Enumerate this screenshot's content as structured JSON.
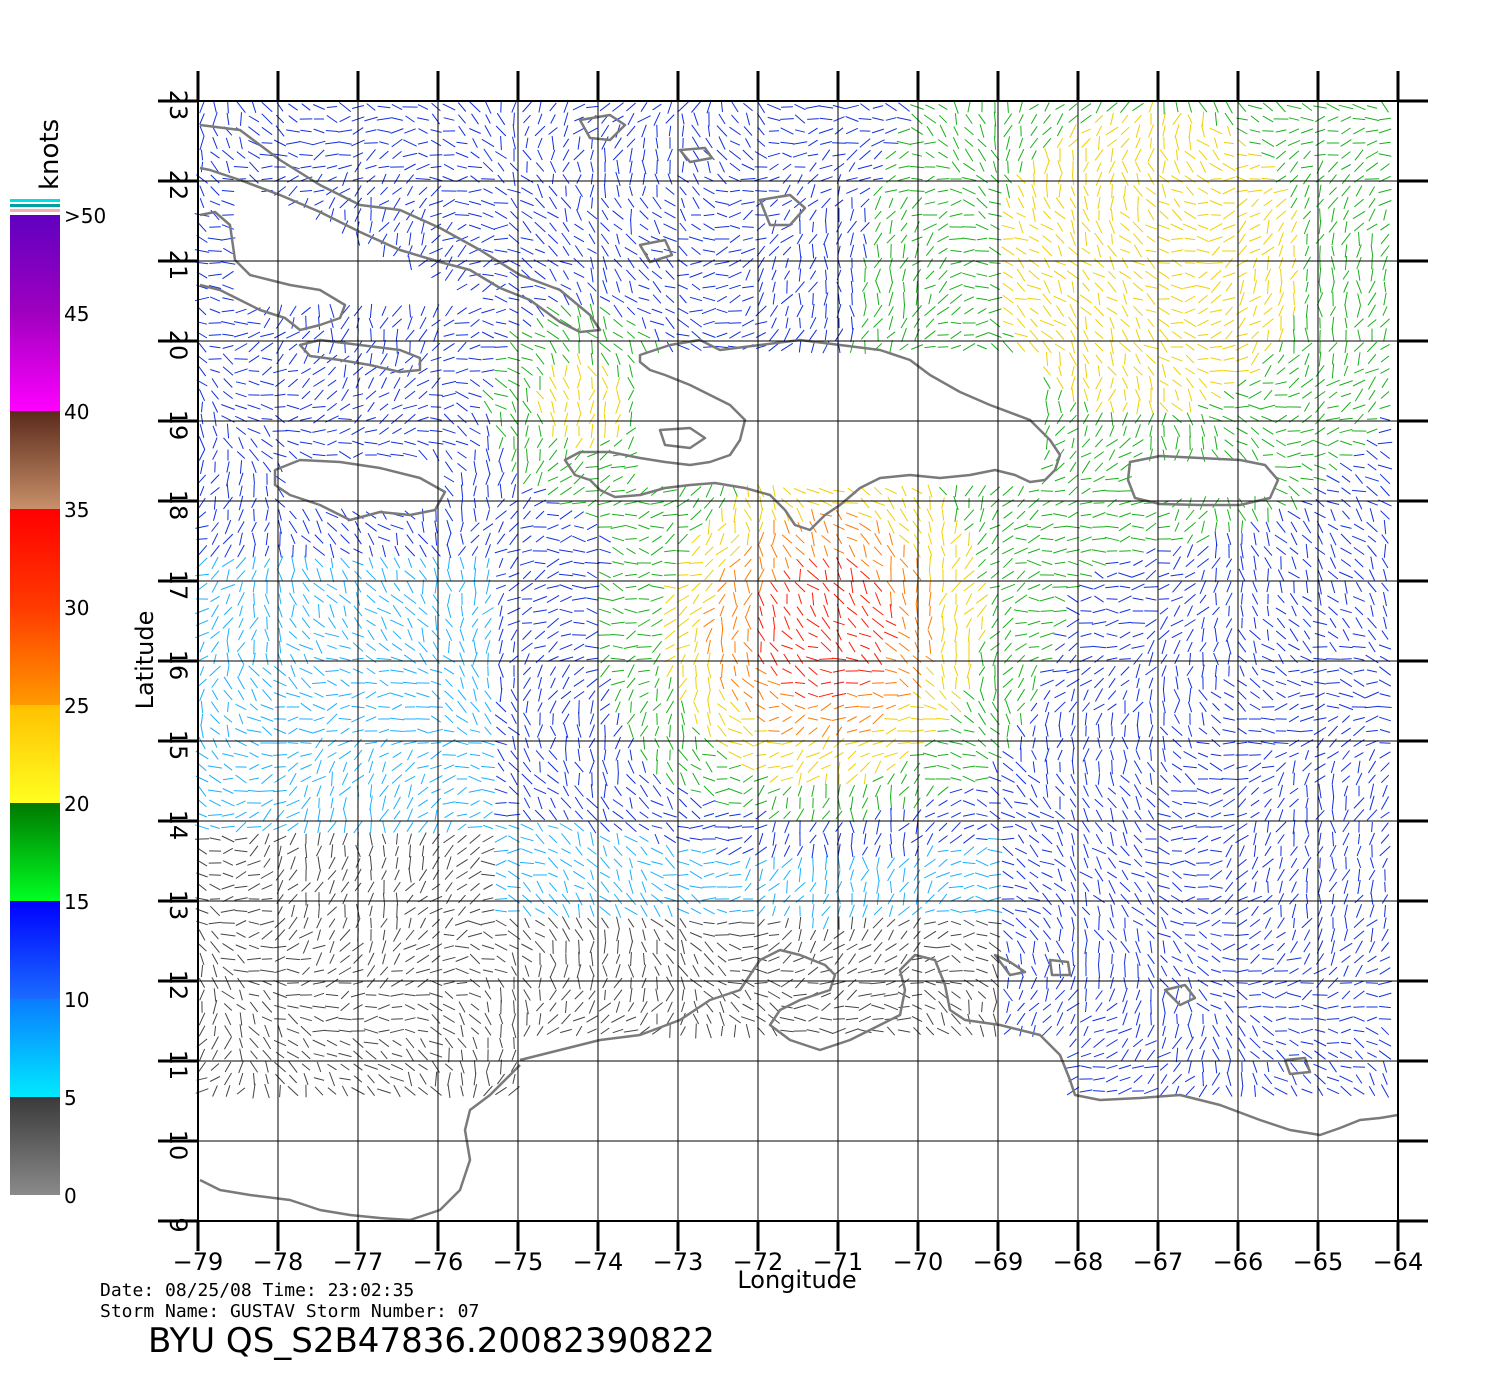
{
  "map": {
    "xlabel": "Longitude",
    "ylabel": "Latitude",
    "lon_ticks": [
      "−79",
      "−78",
      "−77",
      "−76",
      "−75",
      "−74",
      "−73",
      "−72",
      "−71",
      "−70",
      "−69",
      "−68",
      "−67",
      "−66",
      "−65",
      "−64"
    ],
    "lat_ticks": [
      "9",
      "10",
      "11",
      "12",
      "13",
      "14",
      "15",
      "16",
      "17",
      "18",
      "19",
      "20",
      "21",
      "22",
      "23"
    ],
    "lon_range": [
      -79,
      -64
    ],
    "lat_range": [
      9,
      23
    ],
    "grid": true,
    "land_outline_color": "#7a7a7a"
  },
  "colorbar": {
    "unit_label": "knots",
    "tick_labels": [
      "0",
      "5",
      "10",
      "15",
      "20",
      "25",
      "30",
      "35",
      "40",
      "45",
      ">50"
    ],
    "bands": [
      {
        "from": 0,
        "to": 5,
        "top": "#3a3a3a",
        "bottom": "#8a8a8a"
      },
      {
        "from": 5,
        "to": 10,
        "top": "#0a7cff",
        "bottom": "#00eaff"
      },
      {
        "from": 10,
        "to": 15,
        "top": "#0000ff",
        "bottom": "#1a6cff"
      },
      {
        "from": 15,
        "to": 20,
        "top": "#007800",
        "bottom": "#00ff22"
      },
      {
        "from": 20,
        "to": 25,
        "top": "#ffc000",
        "bottom": "#ffff20"
      },
      {
        "from": 25,
        "to": 30,
        "top": "#ff3a00",
        "bottom": "#ff9a00"
      },
      {
        "from": 30,
        "to": 35,
        "top": "#ff0000",
        "bottom": "#ff3a00"
      },
      {
        "from": 35,
        "to": 40,
        "top": "#5a2a1a",
        "bottom": "#c8906a"
      },
      {
        "from": 40,
        "to": 45,
        "top": "#a000c0",
        "bottom": "#ff00ff"
      },
      {
        "from": 45,
        "to": 50,
        "top": "#6000c0",
        "bottom": "#a000c0"
      }
    ]
  },
  "footer": {
    "date_line": "Date: 08/25/08   Time: 23:02:35",
    "storm_line": "Storm Name: GUSTAV   Storm Number: 07",
    "product_id": "BYU QS_S2B47836.20082390822"
  }
}
